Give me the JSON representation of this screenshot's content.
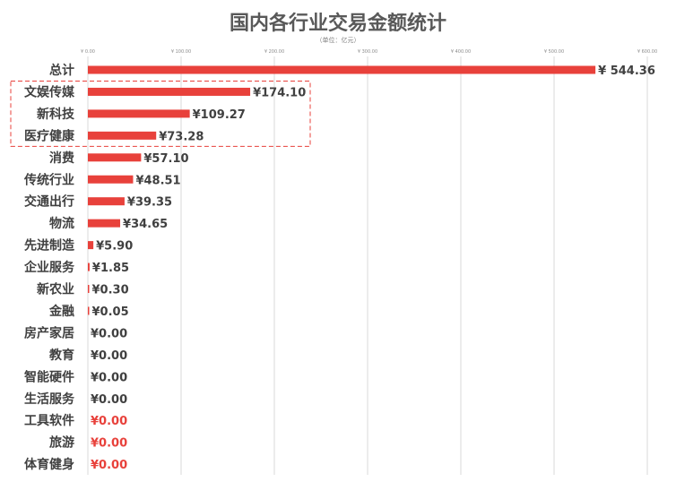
{
  "chart_data": {
    "type": "bar",
    "orientation": "horizontal",
    "title": "国内各行业交易金额统计",
    "subtitle": "（单位：亿元）",
    "categories": [
      "总计",
      "文娱传媒",
      "新科技",
      "医疗健康",
      "消费",
      "传统行业",
      "交通出行",
      "物流",
      "先进制造",
      "企业服务",
      "新农业",
      "金融",
      "房产家居",
      "教育",
      "智能硬件",
      "生活服务",
      "工具软件",
      "旅游",
      "体育健身"
    ],
    "values": [
      544.36,
      174.1,
      109.27,
      73.28,
      57.1,
      48.51,
      39.35,
      34.65,
      5.9,
      1.85,
      0.3,
      0.05,
      0.0,
      0.0,
      0.0,
      0.0,
      0.0,
      0.0,
      0.0
    ],
    "value_labels": [
      "¥ 544.36",
      "¥174.10",
      "¥109.27",
      "¥73.28",
      "¥57.10",
      "¥48.51",
      "¥39.35",
      "¥34.65",
      "¥5.90",
      "¥1.85",
      "¥0.30",
      "¥0.05",
      "¥0.00",
      "¥0.00",
      "¥0.00",
      "¥0.00",
      "¥0.00",
      "¥0.00",
      "¥0.00"
    ],
    "value_label_colors": [
      "#404040",
      "#404040",
      "#404040",
      "#404040",
      "#404040",
      "#404040",
      "#404040",
      "#404040",
      "#404040",
      "#404040",
      "#404040",
      "#404040",
      "#404040",
      "#404040",
      "#404040",
      "#404040",
      "#e8413b",
      "#e8413b",
      "#e8413b"
    ],
    "x_ticks": [
      0,
      100,
      200,
      300,
      400,
      500,
      600
    ],
    "x_tick_labels": [
      "¥ 0.00",
      "¥ 100.00",
      "¥ 200.00",
      "¥ 300.00",
      "¥ 400.00",
      "¥ 500.00",
      "¥ 600.00"
    ],
    "xlim": [
      0,
      600
    ],
    "grid": true,
    "highlight_categories": [
      "文娱传媒",
      "新科技",
      "医疗健康"
    ],
    "colors": {
      "bar": "#e8413b",
      "grid": "#d9d9d9",
      "highlight_border": "#e8413b",
      "label": "#404040"
    }
  }
}
